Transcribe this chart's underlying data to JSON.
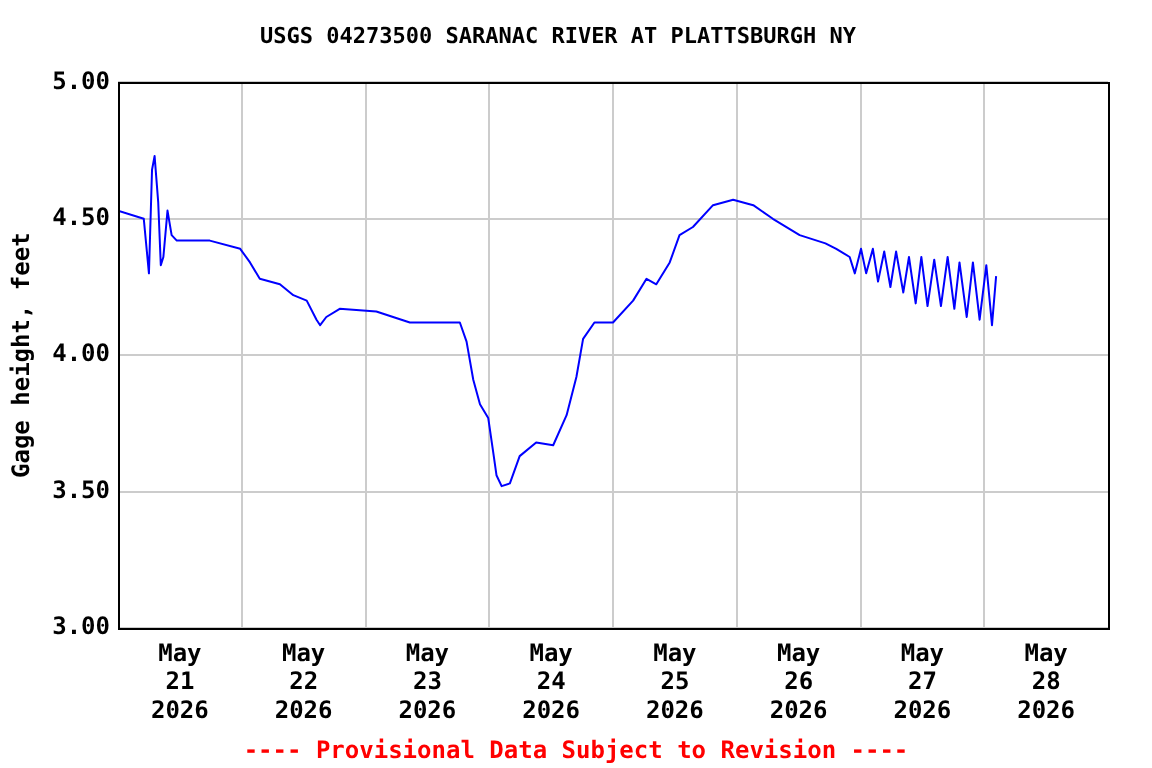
{
  "chart_data": {
    "type": "line",
    "title": "USGS 04273500 SARANAC RIVER AT PLATTSBURGH NY",
    "ylabel": "Gage height, feet",
    "annotations": [
      "---- Provisional Data Subject to Revision ----"
    ],
    "x": [
      "2026-05-21T00:00",
      "2026-05-21T05:00",
      "2026-05-21T06:00",
      "2026-05-21T06:36",
      "2026-05-21T07:06",
      "2026-05-21T07:48",
      "2026-05-21T08:18",
      "2026-05-21T08:48",
      "2026-05-21T09:36",
      "2026-05-21T10:24",
      "2026-05-21T11:24",
      "2026-05-21T17:48",
      "2026-05-21T23:42",
      "2026-05-22T01:36",
      "2026-05-22T03:30",
      "2026-05-22T07:24",
      "2026-05-22T10:00",
      "2026-05-22T12:36",
      "2026-05-22T14:30",
      "2026-05-22T15:12",
      "2026-05-22T16:24",
      "2026-05-22T19:00",
      "2026-05-23T02:06",
      "2026-05-23T08:36",
      "2026-05-23T18:18",
      "2026-05-23T19:36",
      "2026-05-23T20:54",
      "2026-05-23T22:12",
      "2026-05-23T23:48",
      "2026-05-24T00:48",
      "2026-05-24T01:24",
      "2026-05-24T02:24",
      "2026-05-24T04:00",
      "2026-05-24T05:54",
      "2026-05-24T09:06",
      "2026-05-24T12:24",
      "2026-05-24T15:00",
      "2026-05-24T16:54",
      "2026-05-24T18:12",
      "2026-05-24T20:24",
      "2026-05-25T00:00",
      "2026-05-25T03:54",
      "2026-05-25T06:30",
      "2026-05-25T08:24",
      "2026-05-25T11:00",
      "2026-05-25T12:54",
      "2026-05-25T15:30",
      "2026-05-25T19:24",
      "2026-05-25T23:18",
      "2026-05-26T03:12",
      "2026-05-26T07:00",
      "2026-05-26T12:12",
      "2026-05-26T17:12",
      "2026-05-26T19:18",
      "2026-05-26T21:54",
      "2026-05-26T22:54",
      "2026-05-27T00:06",
      "2026-05-27T01:06",
      "2026-05-27T02:24",
      "2026-05-27T03:24",
      "2026-05-27T04:36",
      "2026-05-27T05:48",
      "2026-05-27T06:54",
      "2026-05-27T08:18",
      "2026-05-27T09:24",
      "2026-05-27T10:42",
      "2026-05-27T11:48",
      "2026-05-27T13:00",
      "2026-05-27T14:18",
      "2026-05-27T15:36",
      "2026-05-27T16:54",
      "2026-05-27T18:12",
      "2026-05-27T19:12",
      "2026-05-27T20:36",
      "2026-05-27T21:48",
      "2026-05-27T23:06",
      "2026-05-28T00:24",
      "2026-05-28T01:30",
      "2026-05-28T02:18"
    ],
    "series": [
      {
        "color": "#0000ff",
        "values": [
          4.53,
          4.5,
          4.3,
          4.68,
          4.73,
          4.56,
          4.33,
          4.36,
          4.53,
          4.44,
          4.42,
          4.42,
          4.39,
          4.34,
          4.28,
          4.26,
          4.22,
          4.2,
          4.13,
          4.11,
          4.14,
          4.17,
          4.16,
          4.12,
          4.12,
          4.05,
          3.91,
          3.82,
          3.77,
          3.64,
          3.56,
          3.52,
          3.53,
          3.63,
          3.68,
          3.67,
          3.78,
          3.92,
          4.06,
          4.12,
          4.12,
          4.2,
          4.28,
          4.26,
          4.34,
          4.44,
          4.47,
          4.55,
          4.57,
          4.55,
          4.5,
          4.44,
          4.41,
          4.39,
          4.36,
          4.3,
          4.39,
          4.3,
          4.39,
          4.27,
          4.38,
          4.25,
          4.38,
          4.23,
          4.36,
          4.19,
          4.36,
          4.18,
          4.35,
          4.18,
          4.36,
          4.17,
          4.34,
          4.14,
          4.34,
          4.13,
          4.33,
          4.11,
          4.29
        ]
      }
    ],
    "xlim": [
      "2026-05-21T00:00",
      "2026-05-29T00:00"
    ],
    "xticks": [
      {
        "value": "2026-05-21T12:00",
        "label": "May\n21\n2026"
      },
      {
        "value": "2026-05-22T00:00",
        "label": null
      },
      {
        "value": "2026-05-22T12:00",
        "label": "May\n22\n2026"
      },
      {
        "value": "2026-05-23T00:00",
        "label": null
      },
      {
        "value": "2026-05-23T12:00",
        "label": "May\n23\n2026"
      },
      {
        "value": "2026-05-24T00:00",
        "label": null
      },
      {
        "value": "2026-05-24T12:00",
        "label": "May\n24\n2026"
      },
      {
        "value": "2026-05-25T00:00",
        "label": null
      },
      {
        "value": "2026-05-25T12:00",
        "label": "May\n25\n2026"
      },
      {
        "value": "2026-05-26T00:00",
        "label": null
      },
      {
        "value": "2026-05-26T12:00",
        "label": "May\n26\n2026"
      },
      {
        "value": "2026-05-27T00:00",
        "label": null
      },
      {
        "value": "2026-05-27T12:00",
        "label": "May\n27\n2026"
      },
      {
        "value": "2026-05-28T00:00",
        "label": null
      },
      {
        "value": "2026-05-28T12:00",
        "label": "May\n28\n2026"
      }
    ],
    "ylim": [
      3,
      5
    ],
    "yticks": [
      {
        "value": 3,
        "label": "3.00"
      },
      {
        "value": 3.5,
        "label": "3.50"
      },
      {
        "value": 4,
        "label": "4.00"
      },
      {
        "value": 4.5,
        "label": "4.50"
      },
      {
        "value": 5,
        "label": "5.00"
      }
    ],
    "grid": true,
    "legend": false,
    "marker": "none",
    "line_style": "solid"
  }
}
